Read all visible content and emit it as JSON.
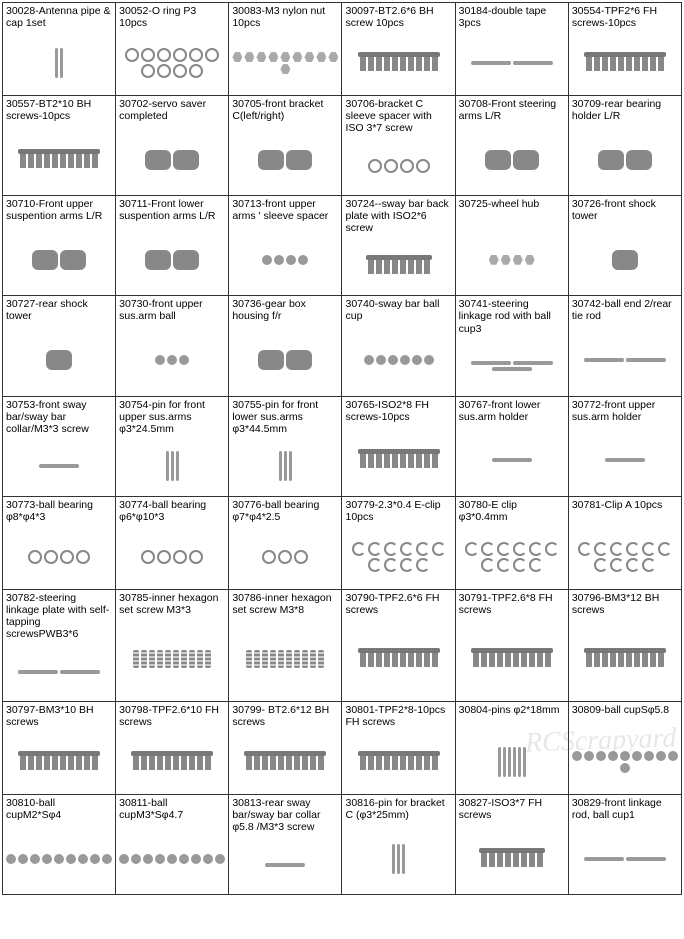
{
  "watermark": "RCScrapyard",
  "columns": 6,
  "rows": 10,
  "cell_border_color": "#333333",
  "background_color": "#ffffff",
  "label_fontsize": 10.5,
  "parts": [
    {
      "label": "30028-Antenna pipe & cap 1set",
      "glyph": "pin",
      "count": 2
    },
    {
      "label": "30052-O ring P3 10pcs",
      "glyph": "ring",
      "count": 10
    },
    {
      "label": "30083-M3 nylon nut 10pcs",
      "glyph": "nut",
      "count": 10
    },
    {
      "label": "30097-BT2.6*6 BH screw 10pcs",
      "glyph": "screw",
      "count": 10
    },
    {
      "label": "30184-double tape 3pcs",
      "glyph": "bar",
      "count": 2
    },
    {
      "label": "30554-TPF2*6 FH screws-10pcs",
      "glyph": "screw",
      "count": 10
    },
    {
      "label": "30557-BT2*10 BH screws-10pcs",
      "glyph": "screw",
      "count": 10
    },
    {
      "label": "30702-servo saver completed",
      "glyph": "blob",
      "count": 2
    },
    {
      "label": "30705-front bracket C(left/right)",
      "glyph": "blob",
      "count": 2
    },
    {
      "label": "30706-bracket C sleeve spacer with ISO 3*7 screw",
      "glyph": "ring",
      "count": 4
    },
    {
      "label": "30708-Front steering arms L/R",
      "glyph": "blob",
      "count": 2
    },
    {
      "label": "30709-rear bearing holder L/R",
      "glyph": "blob",
      "count": 2
    },
    {
      "label": "30710-Front upper suspention arms L/R",
      "glyph": "blob",
      "count": 2
    },
    {
      "label": "30711-Front lower suspention arms L/R",
      "glyph": "blob",
      "count": 2
    },
    {
      "label": "30713-front upper arms ' sleeve spacer",
      "glyph": "ball",
      "count": 4
    },
    {
      "label": "30724--sway bar back plate with ISO2*6 screw",
      "glyph": "screw",
      "count": 8
    },
    {
      "label": "30725-wheel hub",
      "glyph": "nut",
      "count": 4
    },
    {
      "label": "30726-front shock tower",
      "glyph": "blob",
      "count": 1
    },
    {
      "label": "30727-rear shock tower",
      "glyph": "blob",
      "count": 1
    },
    {
      "label": "30730-front upper sus.arm ball",
      "glyph": "ball",
      "count": 3
    },
    {
      "label": "30736-gear box housing  f/r",
      "glyph": "blob",
      "count": 2
    },
    {
      "label": "30740-sway bar ball cup",
      "glyph": "ball",
      "count": 6
    },
    {
      "label": "30741-steering linkage rod with ball cup3",
      "glyph": "bar",
      "count": 3
    },
    {
      "label": "30742-ball end 2/rear tie rod",
      "glyph": "bar",
      "count": 2
    },
    {
      "label": "30753-front sway bar/sway bar collar/M3*3 screw",
      "glyph": "bar",
      "count": 1
    },
    {
      "label": "30754-pin for front upper sus.arms φ3*24.5mm",
      "glyph": "pin",
      "count": 3
    },
    {
      "label": "30755-pin for front lower sus.arms φ3*44.5mm",
      "glyph": "pin",
      "count": 3
    },
    {
      "label": "30765-ISO2*8 FH screws-10pcs",
      "glyph": "screw",
      "count": 10
    },
    {
      "label": "30767-front lower sus.arm holder",
      "glyph": "bar",
      "count": 1
    },
    {
      "label": "30772-front upper sus.arm holder",
      "glyph": "bar",
      "count": 1
    },
    {
      "label": "30773-ball bearing φ8*φ4*3",
      "glyph": "ring",
      "count": 4
    },
    {
      "label": "30774-ball bearing φ6*φ10*3",
      "glyph": "ring",
      "count": 4
    },
    {
      "label": "30776-ball bearing φ7*φ4*2.5",
      "glyph": "ring",
      "count": 3
    },
    {
      "label": "30779-2.3*0.4 E-clip 10pcs",
      "glyph": "clip",
      "count": 10
    },
    {
      "label": "30780-E clip φ3*0.4mm",
      "glyph": "clip",
      "count": 10
    },
    {
      "label": "30781-Clip A 10pcs",
      "glyph": "clip",
      "count": 10
    },
    {
      "label": "30782-steering linkage plate with self-tapping screwsPWB3*6",
      "glyph": "bar",
      "count": 2
    },
    {
      "label": "30785-inner hexagon set screw  M3*3",
      "glyph": "spring",
      "count": 10
    },
    {
      "label": "30786-inner hexagon set screw  M3*8",
      "glyph": "spring",
      "count": 10
    },
    {
      "label": "30790-TPF2.6*6 FH screws",
      "glyph": "screw",
      "count": 10
    },
    {
      "label": "30791-TPF2.6*8 FH screws",
      "glyph": "screw",
      "count": 10
    },
    {
      "label": "30796-BM3*12 BH screws",
      "glyph": "screw",
      "count": 10
    },
    {
      "label": "30797-BM3*10 BH screws",
      "glyph": "screw",
      "count": 10
    },
    {
      "label": "30798-TPF2.6*10 FH screws",
      "glyph": "screw",
      "count": 10
    },
    {
      "label": "30799- BT2.6*12 BH screws",
      "glyph": "screw",
      "count": 10
    },
    {
      "label": "30801-TPF2*8-10pcs FH screws",
      "glyph": "screw",
      "count": 10
    },
    {
      "label": "30804-pins φ2*18mm",
      "glyph": "pin",
      "count": 6
    },
    {
      "label": "30809-ball cupSφ5.8",
      "glyph": "ball",
      "count": 10
    },
    {
      "label": "30810-ball cupM2*Sφ4",
      "glyph": "ball",
      "count": 9
    },
    {
      "label": "30811-ball cupM3*Sφ4.7",
      "glyph": "ball",
      "count": 9
    },
    {
      "label": "30813-rear sway bar/sway bar collar φ5.8 /M3*3 screw",
      "glyph": "bar",
      "count": 1
    },
    {
      "label": "30816-pin for bracket C (φ3*25mm)",
      "glyph": "pin",
      "count": 3
    },
    {
      "label": "30827-ISO3*7 FH screws",
      "glyph": "screw",
      "count": 8
    },
    {
      "label": "30829-front linkage rod, ball cup1",
      "glyph": "bar",
      "count": 2
    }
  ]
}
